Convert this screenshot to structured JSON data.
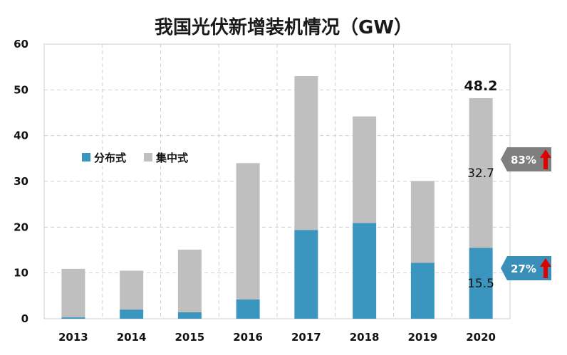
{
  "chart_data": {
    "type": "bar",
    "stacked": true,
    "title": "我国光伏新增装机情况（GW）",
    "categories": [
      "2013",
      "2014",
      "2015",
      "2016",
      "2017",
      "2018",
      "2019",
      "2020"
    ],
    "series": [
      {
        "name": "分布式",
        "color": "#3a95bf",
        "values": [
          0.3,
          2.0,
          1.4,
          4.2,
          19.4,
          20.9,
          12.2,
          15.5
        ]
      },
      {
        "name": "集中式",
        "color": "#bfbfbf",
        "values": [
          10.6,
          8.5,
          13.7,
          29.8,
          33.6,
          23.3,
          17.9,
          32.7
        ]
      }
    ],
    "ylim": [
      0,
      60
    ],
    "yticks": [
      0,
      10,
      20,
      30,
      40,
      50,
      60
    ],
    "grid": true,
    "legend": "upper-left",
    "annotations": {
      "total_2020": "48.2",
      "central_2020": "32.7",
      "distributed_2020": "15.5",
      "central_share": "83%",
      "distributed_share": "27%",
      "central_share_color": "#7f7f7f",
      "distributed_share_color": "#3a8fb8",
      "arrow_color": "#e00000"
    }
  }
}
